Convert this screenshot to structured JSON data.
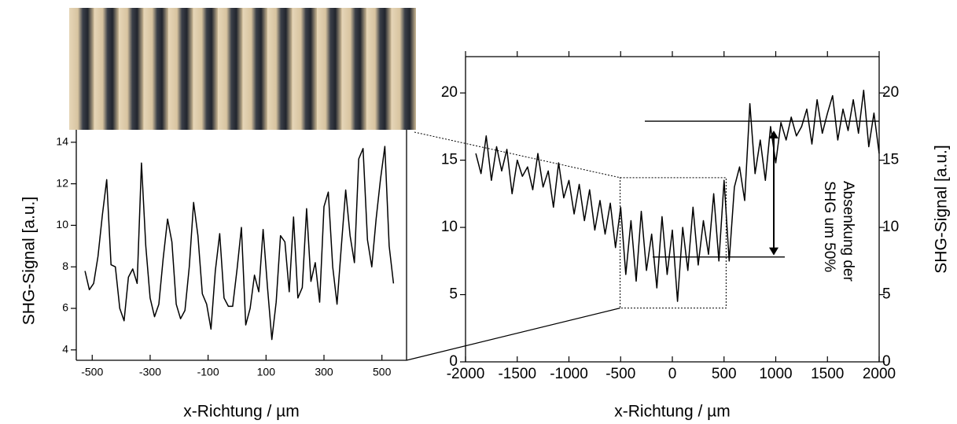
{
  "chart_data": [
    {
      "type": "line",
      "xlabel": "x-Richtung / µm",
      "ylabel": "SHG-Signal [a.u.]",
      "xlim": [
        -555,
        585
      ],
      "ylim": [
        3.5,
        14.6
      ],
      "xticks": [
        -500,
        -300,
        -100,
        100,
        300,
        500
      ],
      "yticks": [
        4,
        6,
        8,
        10,
        12,
        14
      ],
      "color": "#000000",
      "x": [
        -525,
        -510,
        -495,
        -480,
        -465,
        -450,
        -435,
        -420,
        -405,
        -390,
        -375,
        -360,
        -345,
        -330,
        -315,
        -300,
        -285,
        -270,
        -255,
        -240,
        -225,
        -210,
        -195,
        -180,
        -165,
        -150,
        -135,
        -120,
        -105,
        -90,
        -75,
        -60,
        -45,
        -30,
        -15,
        0,
        15,
        30,
        45,
        60,
        75,
        90,
        105,
        120,
        135,
        150,
        165,
        180,
        195,
        210,
        225,
        240,
        255,
        270,
        285,
        300,
        315,
        330,
        345,
        360,
        375,
        390,
        405,
        420,
        435,
        450,
        465,
        480,
        495,
        510,
        525,
        540
      ],
      "values": [
        7.8,
        6.9,
        7.2,
        8.5,
        10.5,
        12.2,
        8.1,
        8.0,
        6.0,
        5.4,
        7.5,
        7.9,
        7.2,
        13.0,
        9.0,
        6.5,
        5.6,
        6.2,
        8.4,
        10.3,
        9.2,
        6.2,
        5.5,
        5.9,
        8.0,
        11.1,
        9.5,
        6.7,
        6.2,
        5.0,
        7.8,
        9.6,
        6.5,
        6.1,
        6.1,
        7.9,
        9.9,
        5.2,
        6.0,
        7.6,
        6.8,
        9.8,
        7.0,
        4.5,
        6.3,
        9.5,
        9.2,
        6.8,
        10.4,
        6.5,
        7.0,
        10.8,
        7.3,
        8.2,
        6.3,
        10.9,
        11.6,
        8.0,
        6.2,
        9.0,
        11.7,
        9.5,
        8.2,
        13.2,
        13.7,
        9.3,
        8.0,
        10.3,
        12.2,
        13.8,
        9.0,
        7.2
      ]
    },
    {
      "type": "line",
      "xlabel": "x-Richtung / µm",
      "y2label": "SHG-Signal [a.u.]",
      "xlim": [
        -2000,
        2000
      ],
      "ylim": [
        0,
        22.7
      ],
      "y2lim": [
        0,
        22.7
      ],
      "xticks": [
        -2000,
        -1500,
        -1000,
        -500,
        0,
        500,
        1000,
        1500,
        2000
      ],
      "yticks": [
        0,
        5,
        10,
        15,
        20
      ],
      "y2ticks": [
        0,
        5,
        10,
        15,
        20
      ],
      "color": "#000000",
      "annotation": [
        "Absenkung der",
        "SHG um 50%"
      ],
      "hlines": [
        17.9,
        7.8
      ],
      "x": [
        -1900,
        -1850,
        -1800,
        -1750,
        -1700,
        -1650,
        -1600,
        -1550,
        -1500,
        -1450,
        -1400,
        -1350,
        -1300,
        -1250,
        -1200,
        -1150,
        -1100,
        -1050,
        -1000,
        -950,
        -900,
        -850,
        -800,
        -750,
        -700,
        -650,
        -600,
        -550,
        -500,
        -450,
        -400,
        -350,
        -300,
        -250,
        -200,
        -150,
        -100,
        -50,
        0,
        50,
        100,
        150,
        200,
        250,
        300,
        350,
        400,
        450,
        500,
        550,
        600,
        650,
        700,
        750,
        800,
        850,
        900,
        950,
        1000,
        1050,
        1100,
        1150,
        1200,
        1250,
        1300,
        1350,
        1400,
        1450,
        1500,
        1550,
        1600,
        1650,
        1700,
        1750,
        1800,
        1850,
        1900,
        1950,
        2000
      ],
      "values": [
        15.5,
        14.0,
        16.8,
        13.5,
        16.0,
        14.2,
        15.8,
        12.5,
        15.0,
        13.8,
        14.5,
        12.8,
        15.5,
        13.0,
        14.2,
        11.5,
        14.8,
        12.2,
        13.5,
        11.0,
        13.2,
        10.5,
        12.8,
        9.8,
        12.0,
        9.5,
        11.8,
        8.5,
        11.5,
        6.5,
        10.5,
        6.0,
        11.2,
        6.8,
        9.5,
        5.5,
        10.8,
        6.5,
        9.8,
        4.5,
        10.0,
        6.8,
        11.5,
        7.2,
        10.5,
        8.0,
        12.5,
        7.5,
        13.5,
        7.5,
        13.0,
        14.5,
        12.0,
        19.2,
        14.0,
        16.5,
        13.5,
        17.5,
        14.8,
        17.8,
        16.5,
        18.2,
        16.8,
        17.5,
        18.8,
        16.2,
        19.5,
        17.0,
        18.5,
        19.8,
        16.5,
        18.8,
        17.2,
        19.5,
        17.0,
        20.2,
        16.0,
        18.5,
        15.5
      ]
    }
  ]
}
